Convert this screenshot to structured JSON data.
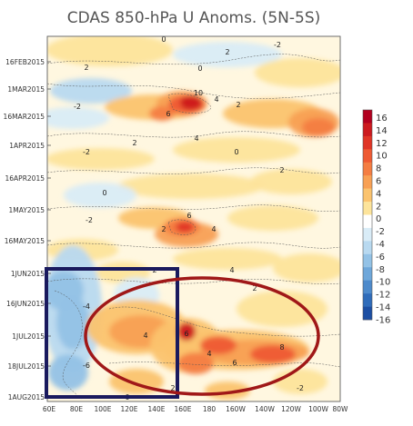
{
  "chart_data": {
    "type": "heatmap",
    "title": "CDAS 850-hPa U Anoms. (5N-5S)",
    "x_ticks": [
      "60E",
      "80E",
      "100E",
      "120E",
      "140E",
      "160E",
      "180",
      "160W",
      "140W",
      "120W",
      "100W",
      "80W"
    ],
    "y_ticks": [
      "16FEB2015",
      "1MAR2015",
      "16MAR2015",
      "1APR2015",
      "16APR2015",
      "1MAY2015",
      "16MAY2015",
      "1JUN2015",
      "16JUN2015",
      "1JUL2015",
      "18JUL2015",
      "1AUG2015"
    ],
    "colorbar_levels": [
      "16",
      "14",
      "12",
      "10",
      "8",
      "6",
      "4",
      "2",
      "0",
      "-2",
      "-4",
      "-6",
      "-8",
      "-10",
      "-12",
      "-14",
      "-16"
    ],
    "colorbar_colors": [
      "#b2001f",
      "#cc1a1f",
      "#e03526",
      "#ee5a33",
      "#f47d42",
      "#f8a054",
      "#fbc36e",
      "#fde49b",
      "#ffffff",
      "#d9ecf7",
      "#b8d9f0",
      "#93c2e6",
      "#6ea7da",
      "#4d8acb",
      "#2f6cba",
      "#1c4fa3"
    ],
    "contour_labels": [
      {
        "text": "0"
      },
      {
        "text": "2"
      },
      {
        "text": "-2"
      },
      {
        "text": "2"
      },
      {
        "text": "0"
      },
      {
        "text": "10"
      },
      {
        "text": "6"
      },
      {
        "text": "4"
      },
      {
        "text": "2"
      },
      {
        "text": "-2"
      },
      {
        "text": "4"
      },
      {
        "text": "2"
      },
      {
        "text": "0"
      },
      {
        "text": "-2"
      },
      {
        "text": "2"
      },
      {
        "text": "6"
      },
      {
        "text": "4"
      },
      {
        "text": "2"
      },
      {
        "text": "0"
      },
      {
        "text": "-2"
      },
      {
        "text": "4"
      },
      {
        "text": "2"
      },
      {
        "text": "-4"
      },
      {
        "text": "4"
      },
      {
        "text": "6"
      },
      {
        "text": "8"
      },
      {
        "text": "4"
      },
      {
        "text": "6"
      },
      {
        "text": "2"
      },
      {
        "text": "-6"
      },
      {
        "text": "2"
      },
      {
        "text": "0"
      },
      {
        "text": "-2"
      }
    ]
  },
  "annotations": {
    "highlight_box": "Indian Ocean / Maritime Continent (60E-150E, 1JUN-1AUG 2015)",
    "highlight_ellipse": "Westerly anomaly region"
  }
}
